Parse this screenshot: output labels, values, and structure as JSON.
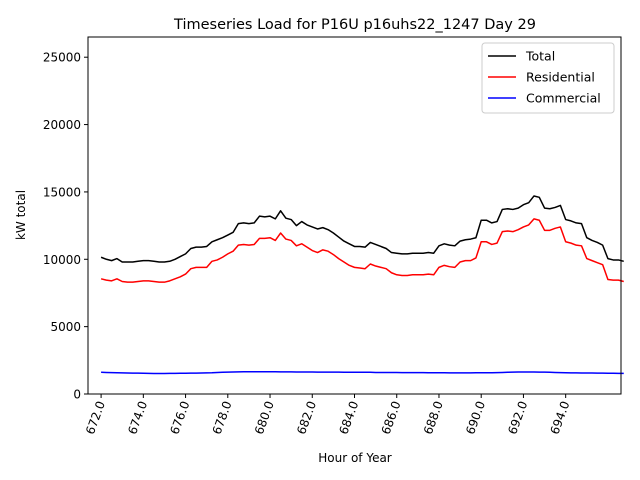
{
  "chart_data": {
    "type": "line",
    "title": "Timeseries Load for P16U p16uhs22_1247  Day 29",
    "xlabel": "Hour of Year",
    "ylabel": "kW total",
    "xlim": [
      671.38,
      696.62
    ],
    "ylim": [
      0,
      26500
    ],
    "x_ticks": [
      672,
      674,
      676,
      678,
      680,
      682,
      684,
      686,
      688,
      690,
      692,
      694
    ],
    "x_tick_labels": [
      "672.0",
      "674.0",
      "676.0",
      "678.0",
      "680.0",
      "682.0",
      "684.0",
      "686.0",
      "688.0",
      "690.0",
      "692.0",
      "694.0"
    ],
    "y_ticks": [
      0,
      5000,
      10000,
      15000,
      20000,
      25000
    ],
    "y_tick_labels": [
      "0",
      "5000",
      "10000",
      "15000",
      "20000",
      "25000"
    ],
    "legend_position": "top-right",
    "x_start": 672.0,
    "x_step": 0.25,
    "series": [
      {
        "name": "Total",
        "color": "#000000",
        "values": [
          10150,
          10000,
          9900,
          10050,
          9800,
          9800,
          9800,
          9850,
          9900,
          9900,
          9850,
          9800,
          9800,
          9850,
          10000,
          10200,
          10400,
          10800,
          10900,
          10900,
          10950,
          11300,
          11450,
          11600,
          11800,
          12000,
          12650,
          12700,
          12650,
          12700,
          13200,
          13150,
          13200,
          13000,
          13600,
          13050,
          12950,
          12500,
          12800,
          12550,
          12400,
          12250,
          12350,
          12200,
          11950,
          11650,
          11350,
          11150,
          10950,
          10950,
          10900,
          11250,
          11100,
          10950,
          10800,
          10500,
          10450,
          10400,
          10400,
          10450,
          10450,
          10450,
          10500,
          10450,
          11000,
          11150,
          11050,
          11000,
          11350,
          11450,
          11500,
          11600,
          12900,
          12900,
          12700,
          12800,
          13700,
          13750,
          13700,
          13800,
          14050,
          14200,
          14700,
          14600,
          13800,
          13750,
          13850,
          14000,
          12950,
          12850,
          12700,
          12650,
          11600,
          11400,
          11250,
          11050,
          10050,
          9950,
          9950,
          9850
        ]
      },
      {
        "name": "Residential",
        "color": "#ff0000",
        "values": [
          8550,
          8450,
          8400,
          8550,
          8350,
          8300,
          8300,
          8350,
          8400,
          8400,
          8350,
          8300,
          8300,
          8400,
          8550,
          8700,
          8900,
          9300,
          9400,
          9400,
          9400,
          9850,
          9950,
          10150,
          10400,
          10600,
          11050,
          11100,
          11050,
          11100,
          11550,
          11550,
          11600,
          11400,
          11950,
          11500,
          11400,
          11000,
          11150,
          10900,
          10650,
          10500,
          10700,
          10600,
          10350,
          10050,
          9800,
          9550,
          9400,
          9350,
          9300,
          9650,
          9500,
          9400,
          9300,
          9000,
          8850,
          8800,
          8800,
          8850,
          8850,
          8850,
          8900,
          8850,
          9400,
          9550,
          9450,
          9400,
          9800,
          9900,
          9900,
          10100,
          11300,
          11300,
          11100,
          11200,
          12050,
          12100,
          12050,
          12200,
          12400,
          12550,
          13000,
          12900,
          12150,
          12150,
          12300,
          12400,
          11300,
          11200,
          11050,
          11000,
          10050,
          9900,
          9750,
          9600,
          8500,
          8450,
          8450,
          8350
        ]
      },
      {
        "name": "Commercial",
        "color": "#0000ff",
        "values": [
          1610,
          1600,
          1590,
          1580,
          1570,
          1560,
          1550,
          1550,
          1540,
          1530,
          1520,
          1520,
          1520,
          1530,
          1530,
          1540,
          1540,
          1550,
          1550,
          1560,
          1570,
          1580,
          1600,
          1610,
          1620,
          1630,
          1640,
          1650,
          1650,
          1650,
          1650,
          1650,
          1650,
          1650,
          1640,
          1640,
          1640,
          1630,
          1630,
          1630,
          1630,
          1620,
          1620,
          1620,
          1620,
          1620,
          1610,
          1610,
          1610,
          1610,
          1610,
          1610,
          1600,
          1600,
          1600,
          1600,
          1600,
          1590,
          1590,
          1590,
          1590,
          1590,
          1580,
          1580,
          1580,
          1580,
          1570,
          1570,
          1570,
          1570,
          1570,
          1580,
          1580,
          1580,
          1580,
          1590,
          1600,
          1610,
          1620,
          1630,
          1630,
          1630,
          1630,
          1620,
          1620,
          1610,
          1600,
          1590,
          1580,
          1570,
          1570,
          1560,
          1560,
          1560,
          1550,
          1550,
          1540,
          1540,
          1530,
          1530
        ]
      }
    ]
  }
}
